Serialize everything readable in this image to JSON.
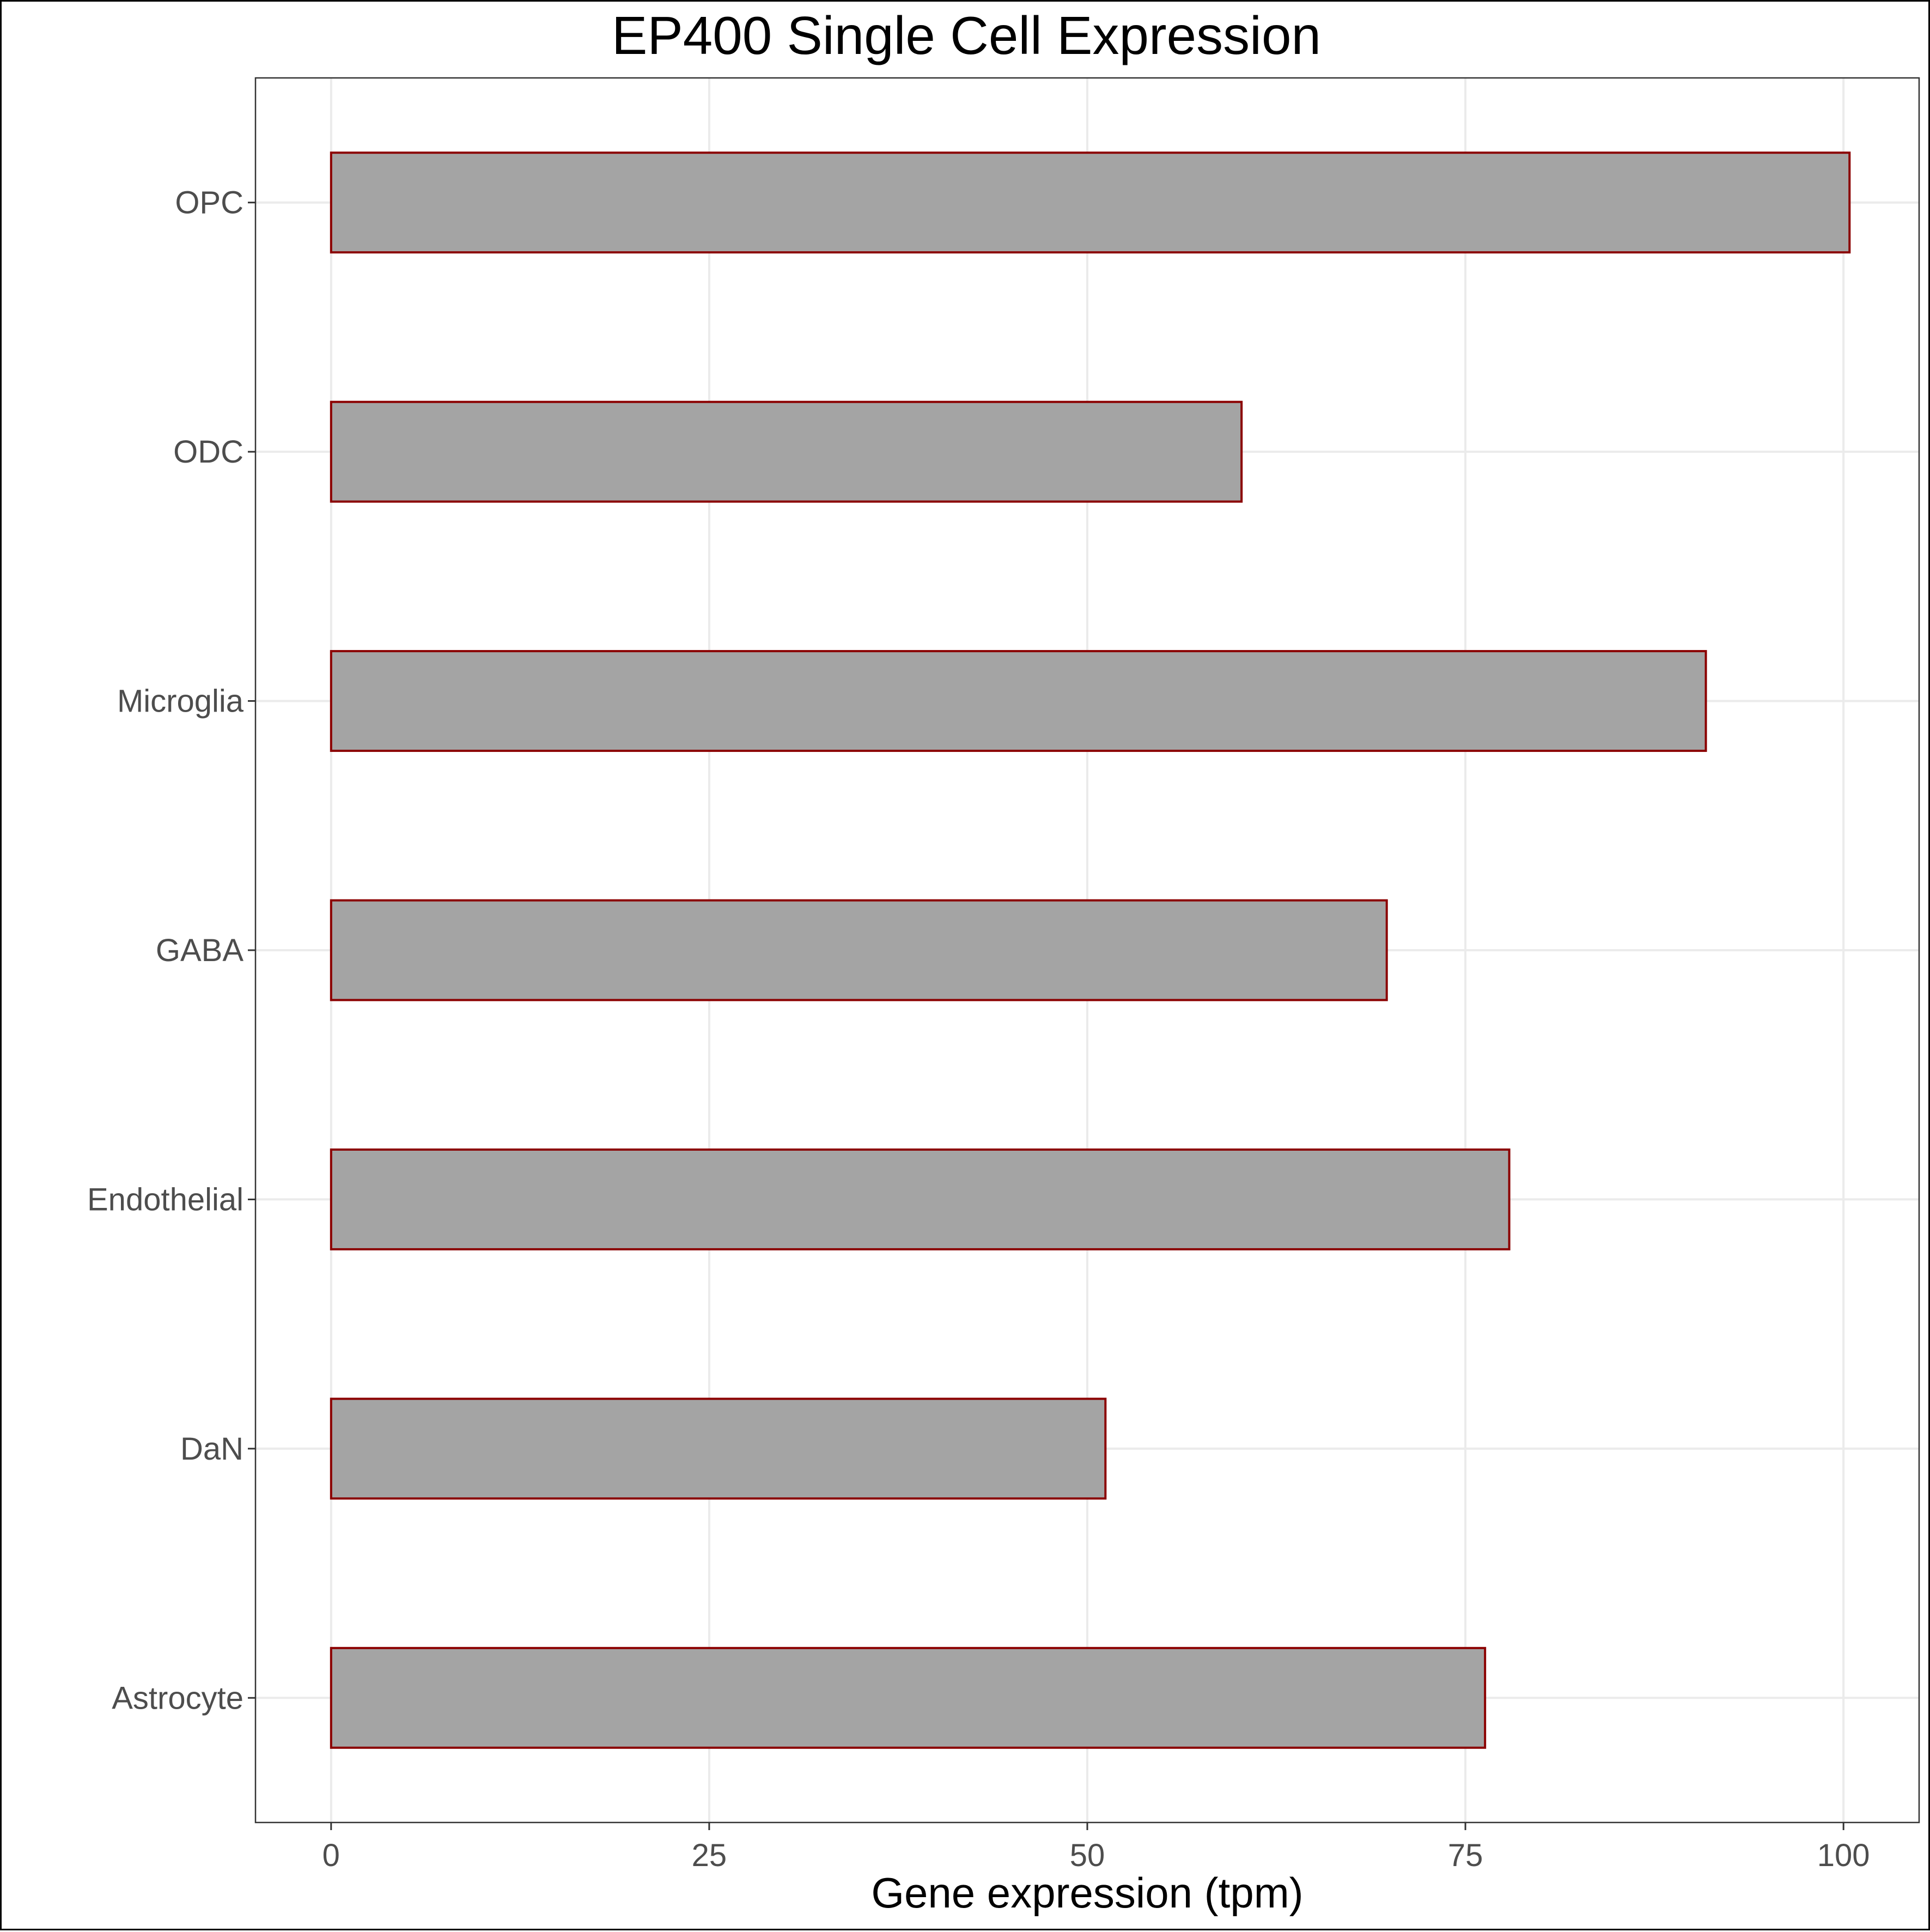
{
  "chart_data": {
    "type": "bar",
    "orientation": "horizontal",
    "title": "EP400 Single Cell Expression",
    "xlabel": "Gene expression (tpm)",
    "ylabel": "",
    "categories": [
      "Astrocyte",
      "DaN",
      "Endothelial",
      "GABA",
      "Microglia",
      "ODC",
      "OPC"
    ],
    "values": [
      76.3,
      51.2,
      77.9,
      69.8,
      90.9,
      60.2,
      100.4
    ],
    "xlim": [
      -5,
      105
    ],
    "xticks": [
      0,
      25,
      50,
      75,
      100
    ],
    "grid": true,
    "legend": "none"
  },
  "colors": {
    "bar_fill": "#a4a4a4",
    "bar_stroke": "#8b0000",
    "grid": "#ebebeb",
    "panel_border": "#333333",
    "tick_text": "#4d4d4d"
  }
}
